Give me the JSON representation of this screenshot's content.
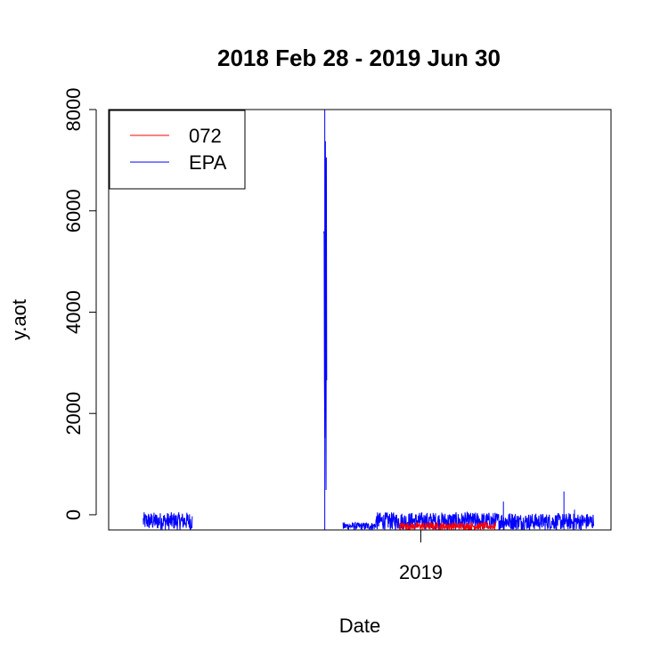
{
  "chart_data": {
    "type": "line",
    "title": "2018 Feb 28 - 2019 Jun 30",
    "xlabel": "Date",
    "ylabel": "y.aot",
    "xlim": [
      "2018-02-28",
      "2019-06-30"
    ],
    "ylim": [
      -300,
      8000
    ],
    "yticks": [
      0,
      2000,
      4000,
      6000,
      8000
    ],
    "xticks": [
      {
        "value": "2019-01-01",
        "label": "2019"
      }
    ],
    "grid": false,
    "legend": {
      "position": "top-left",
      "entries": [
        {
          "label": "072",
          "color": "#ff0000"
        },
        {
          "label": "EPA",
          "color": "#0000ff"
        }
      ]
    },
    "series": [
      {
        "name": "072",
        "color": "#ff0000",
        "segments": [
          {
            "start": "2018-12-10",
            "end": "2019-03-20",
            "min": -300,
            "max": -150
          }
        ]
      },
      {
        "name": "EPA",
        "color": "#0000ff",
        "segments": [
          {
            "start": "2018-03-18",
            "end": "2018-05-08",
            "min": -300,
            "max": 50
          },
          {
            "start": "2018-09-22",
            "end": "2018-09-25",
            "min": -300,
            "max": 8000
          },
          {
            "start": "2018-10-12",
            "end": "2018-11-15",
            "min": -300,
            "max": -150
          },
          {
            "start": "2018-11-15",
            "end": "2019-04-10",
            "min": -300,
            "max": 50
          },
          {
            "start": "2019-04-10",
            "end": "2019-06-30",
            "min": -300,
            "max": 30
          }
        ],
        "spikes": [
          {
            "x": "2018-09-23",
            "y": 8000
          },
          {
            "x": "2019-03-28",
            "y": 260
          },
          {
            "x": "2019-05-30",
            "y": 460
          },
          {
            "x": "2019-06-10",
            "y": 100
          }
        ]
      }
    ]
  }
}
